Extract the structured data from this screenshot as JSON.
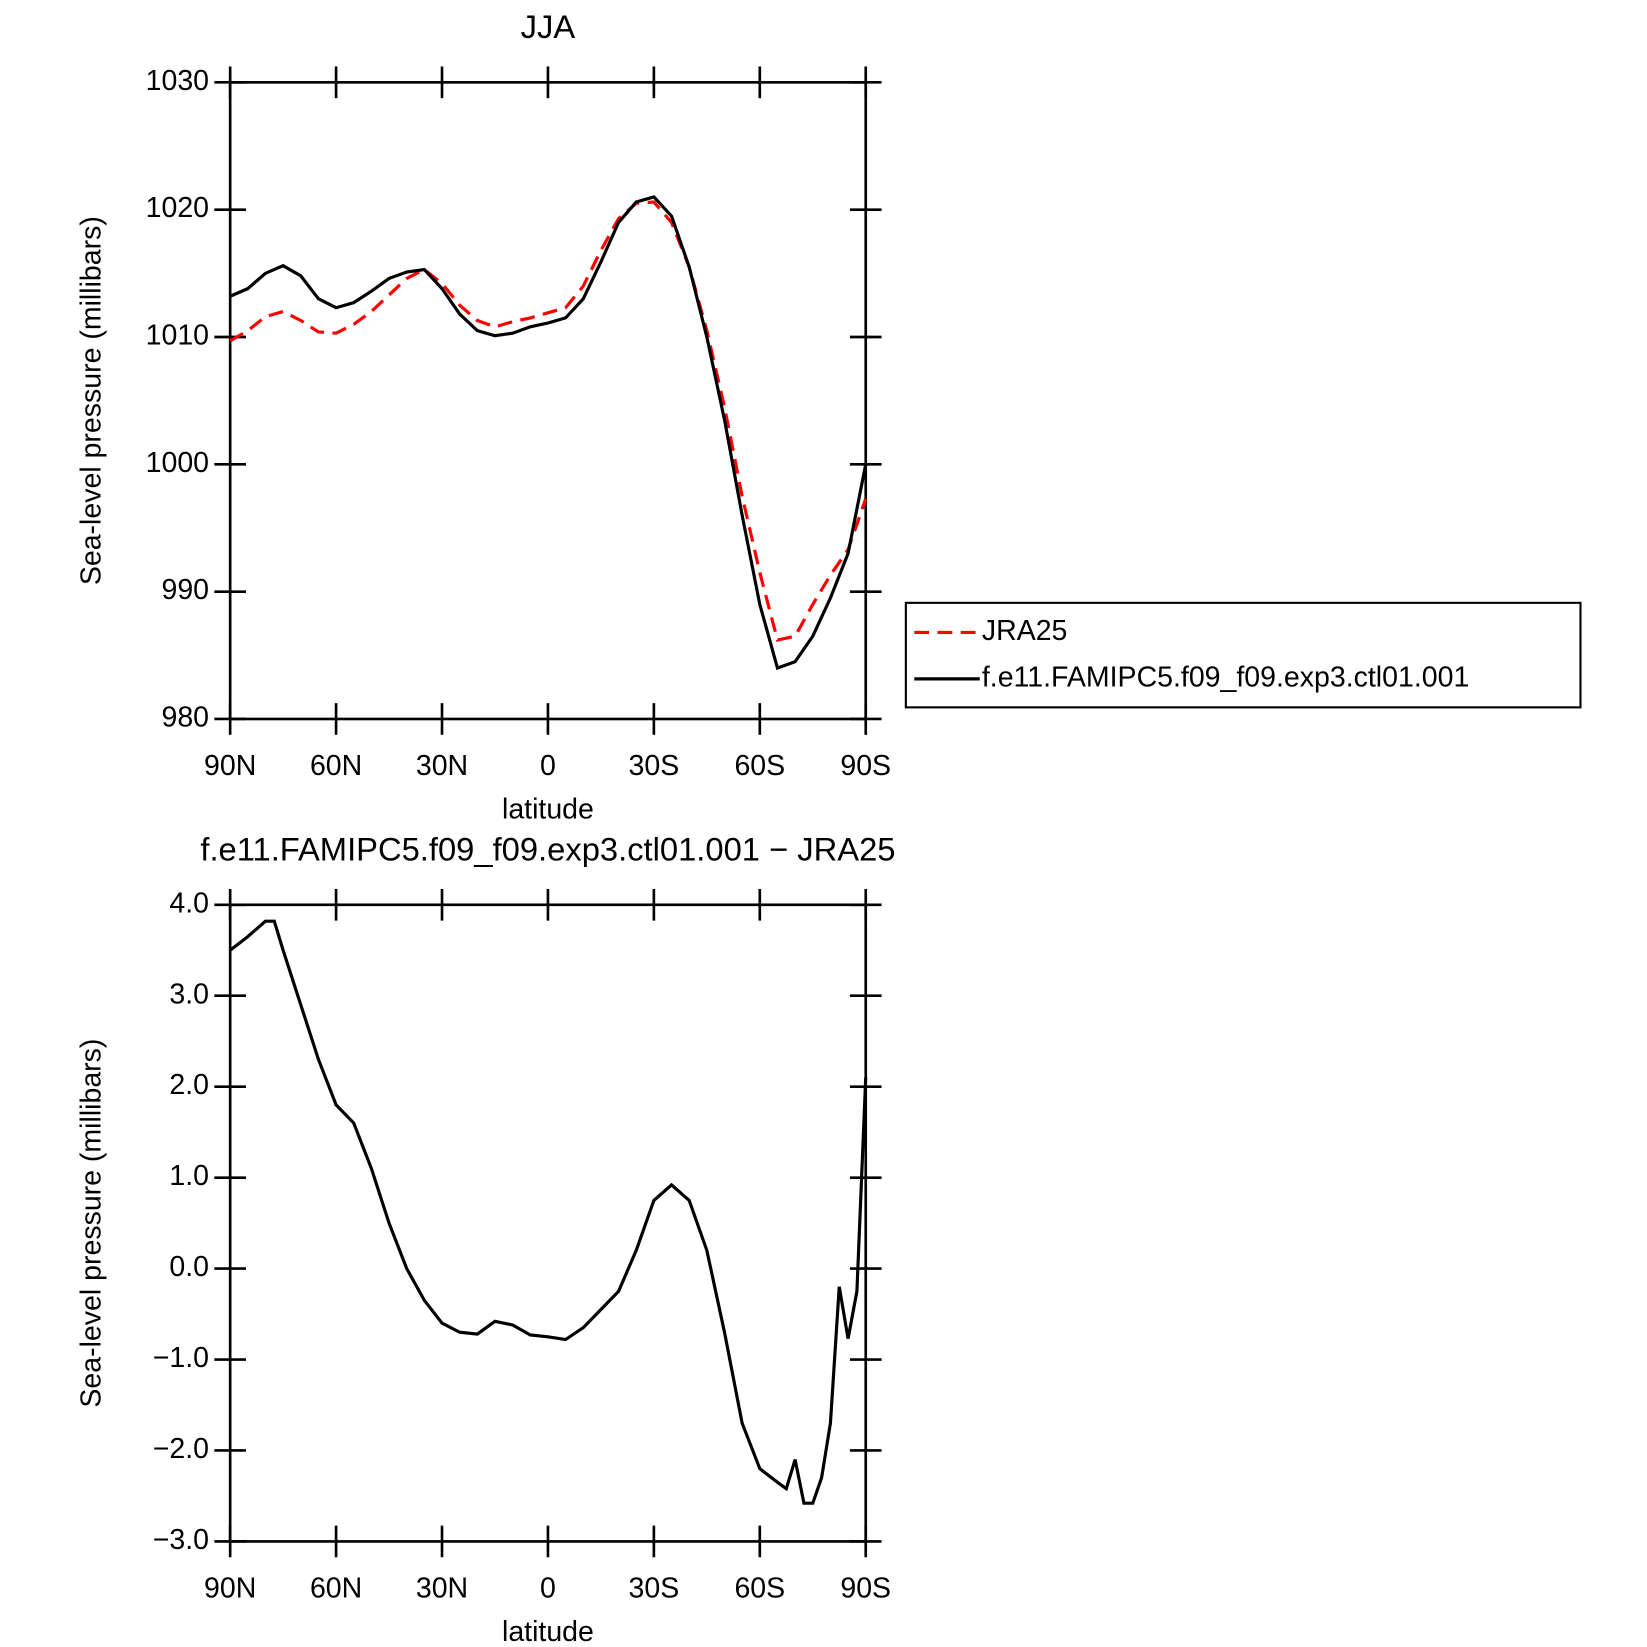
{
  "chart_data": [
    {
      "type": "line",
      "title": "JJA",
      "xlabel": "latitude",
      "ylabel": "Sea-level pressure (millibars)",
      "x": [
        90,
        85,
        80,
        75,
        70,
        65,
        60,
        55,
        50,
        45,
        40,
        35,
        30,
        25,
        20,
        15,
        10,
        5,
        0,
        -5,
        -10,
        -15,
        -20,
        -25,
        -30,
        -35,
        -40,
        -45,
        -50,
        -55,
        -60,
        -65,
        -70,
        -75,
        -80,
        -85,
        -90
      ],
      "series": [
        {
          "name": "JRA25",
          "color": "#ff0000",
          "linestyle": "dashed",
          "values": [
            1009.7,
            1010.5,
            1011.6,
            1012.0,
            1011.3,
            1010.4,
            1010.3,
            1011.0,
            1012.0,
            1013.3,
            1014.6,
            1015.3,
            1014.2,
            1012.5,
            1011.3,
            1010.8,
            1011.2,
            1011.5,
            1011.9,
            1012.3,
            1014.0,
            1016.8,
            1019.3,
            1020.5,
            1020.6,
            1019.0,
            1015.5,
            1010.5,
            1004.5,
            997.5,
            991.5,
            986.2,
            986.5,
            989.0,
            991.3,
            993.3,
            997.3
          ]
        },
        {
          "name": "f.e11.FAMIPC5.f09_f09.exp3.ctl01.001",
          "color": "#000000",
          "linestyle": "solid",
          "values": [
            1013.2,
            1013.8,
            1015.0,
            1015.6,
            1014.8,
            1013.0,
            1012.3,
            1012.7,
            1013.6,
            1014.6,
            1015.1,
            1015.3,
            1013.8,
            1011.8,
            1010.5,
            1010.1,
            1010.3,
            1010.8,
            1011.1,
            1011.5,
            1013.0,
            1015.9,
            1019.0,
            1020.6,
            1021.0,
            1019.5,
            1015.5,
            1010.0,
            1003.5,
            996.0,
            989.0,
            984.0,
            984.5,
            986.5,
            989.5,
            993.0,
            1000.0
          ]
        }
      ],
      "xlim": [
        90,
        -90
      ],
      "xticks": [
        {
          "value": 90,
          "label": "90N"
        },
        {
          "value": 60,
          "label": "60N"
        },
        {
          "value": 30,
          "label": "30N"
        },
        0,
        {
          "value": -30,
          "label": "30S"
        },
        {
          "value": -60,
          "label": "60S"
        },
        {
          "value": -90,
          "label": "90S"
        }
      ],
      "ylim": [
        980,
        1030
      ],
      "yticks": [
        980,
        990,
        1000,
        1010,
        1020,
        1030
      ],
      "legend": "right"
    },
    {
      "type": "line",
      "title": "f.e11.FAMIPC5.f09_f09.exp3.ctl01.001 − JRA25",
      "xlabel": "latitude",
      "ylabel": "Sea-level pressure (millibars)",
      "x": [
        90,
        85,
        80,
        77.5,
        75,
        70,
        65,
        60,
        55,
        50,
        45,
        40,
        35,
        30,
        25,
        20,
        15,
        10,
        5,
        0,
        -5,
        -10,
        -15,
        -20,
        -25,
        -30,
        -35,
        -40,
        -45,
        -50,
        -55,
        -60,
        -65,
        -67.5,
        -70,
        -72.5,
        -75,
        -77.5,
        -80,
        -82.5,
        -85,
        -87.5,
        -90
      ],
      "color": "#000000",
      "linestyle": "solid",
      "values": [
        3.5,
        3.65,
        3.82,
        3.82,
        3.5,
        2.9,
        2.3,
        1.8,
        1.6,
        1.1,
        0.5,
        0.0,
        -0.35,
        -0.6,
        -0.7,
        -0.72,
        -0.58,
        -0.62,
        -0.73,
        -0.75,
        -0.78,
        -0.65,
        -0.45,
        -0.25,
        0.2,
        0.75,
        0.92,
        0.75,
        0.2,
        -0.7,
        -1.7,
        -2.2,
        -2.35,
        -2.42,
        -2.1,
        -2.58,
        -2.58,
        -2.3,
        -1.7,
        -0.2,
        -0.77,
        -0.25,
        2.1
      ],
      "xlim": [
        90,
        -90
      ],
      "xticks": [
        {
          "value": 90,
          "label": "90N"
        },
        {
          "value": 60,
          "label": "60N"
        },
        {
          "value": 30,
          "label": "30N"
        },
        0,
        {
          "value": -30,
          "label": "30S"
        },
        {
          "value": -60,
          "label": "60S"
        },
        {
          "value": -90,
          "label": "90S"
        }
      ],
      "ylim": [
        -3,
        4
      ],
      "yticks": [
        {
          "value": -3,
          "label": "−3.0"
        },
        {
          "value": -2,
          "label": "−2.0"
        },
        {
          "value": -1,
          "label": "−1.0"
        },
        {
          "value": 0,
          "label": "0.0"
        },
        {
          "value": 1,
          "label": "1.0"
        },
        {
          "value": 2,
          "label": "2.0"
        },
        {
          "value": 3,
          "label": "3.0"
        },
        {
          "value": 4,
          "label": "4.0"
        }
      ]
    }
  ]
}
